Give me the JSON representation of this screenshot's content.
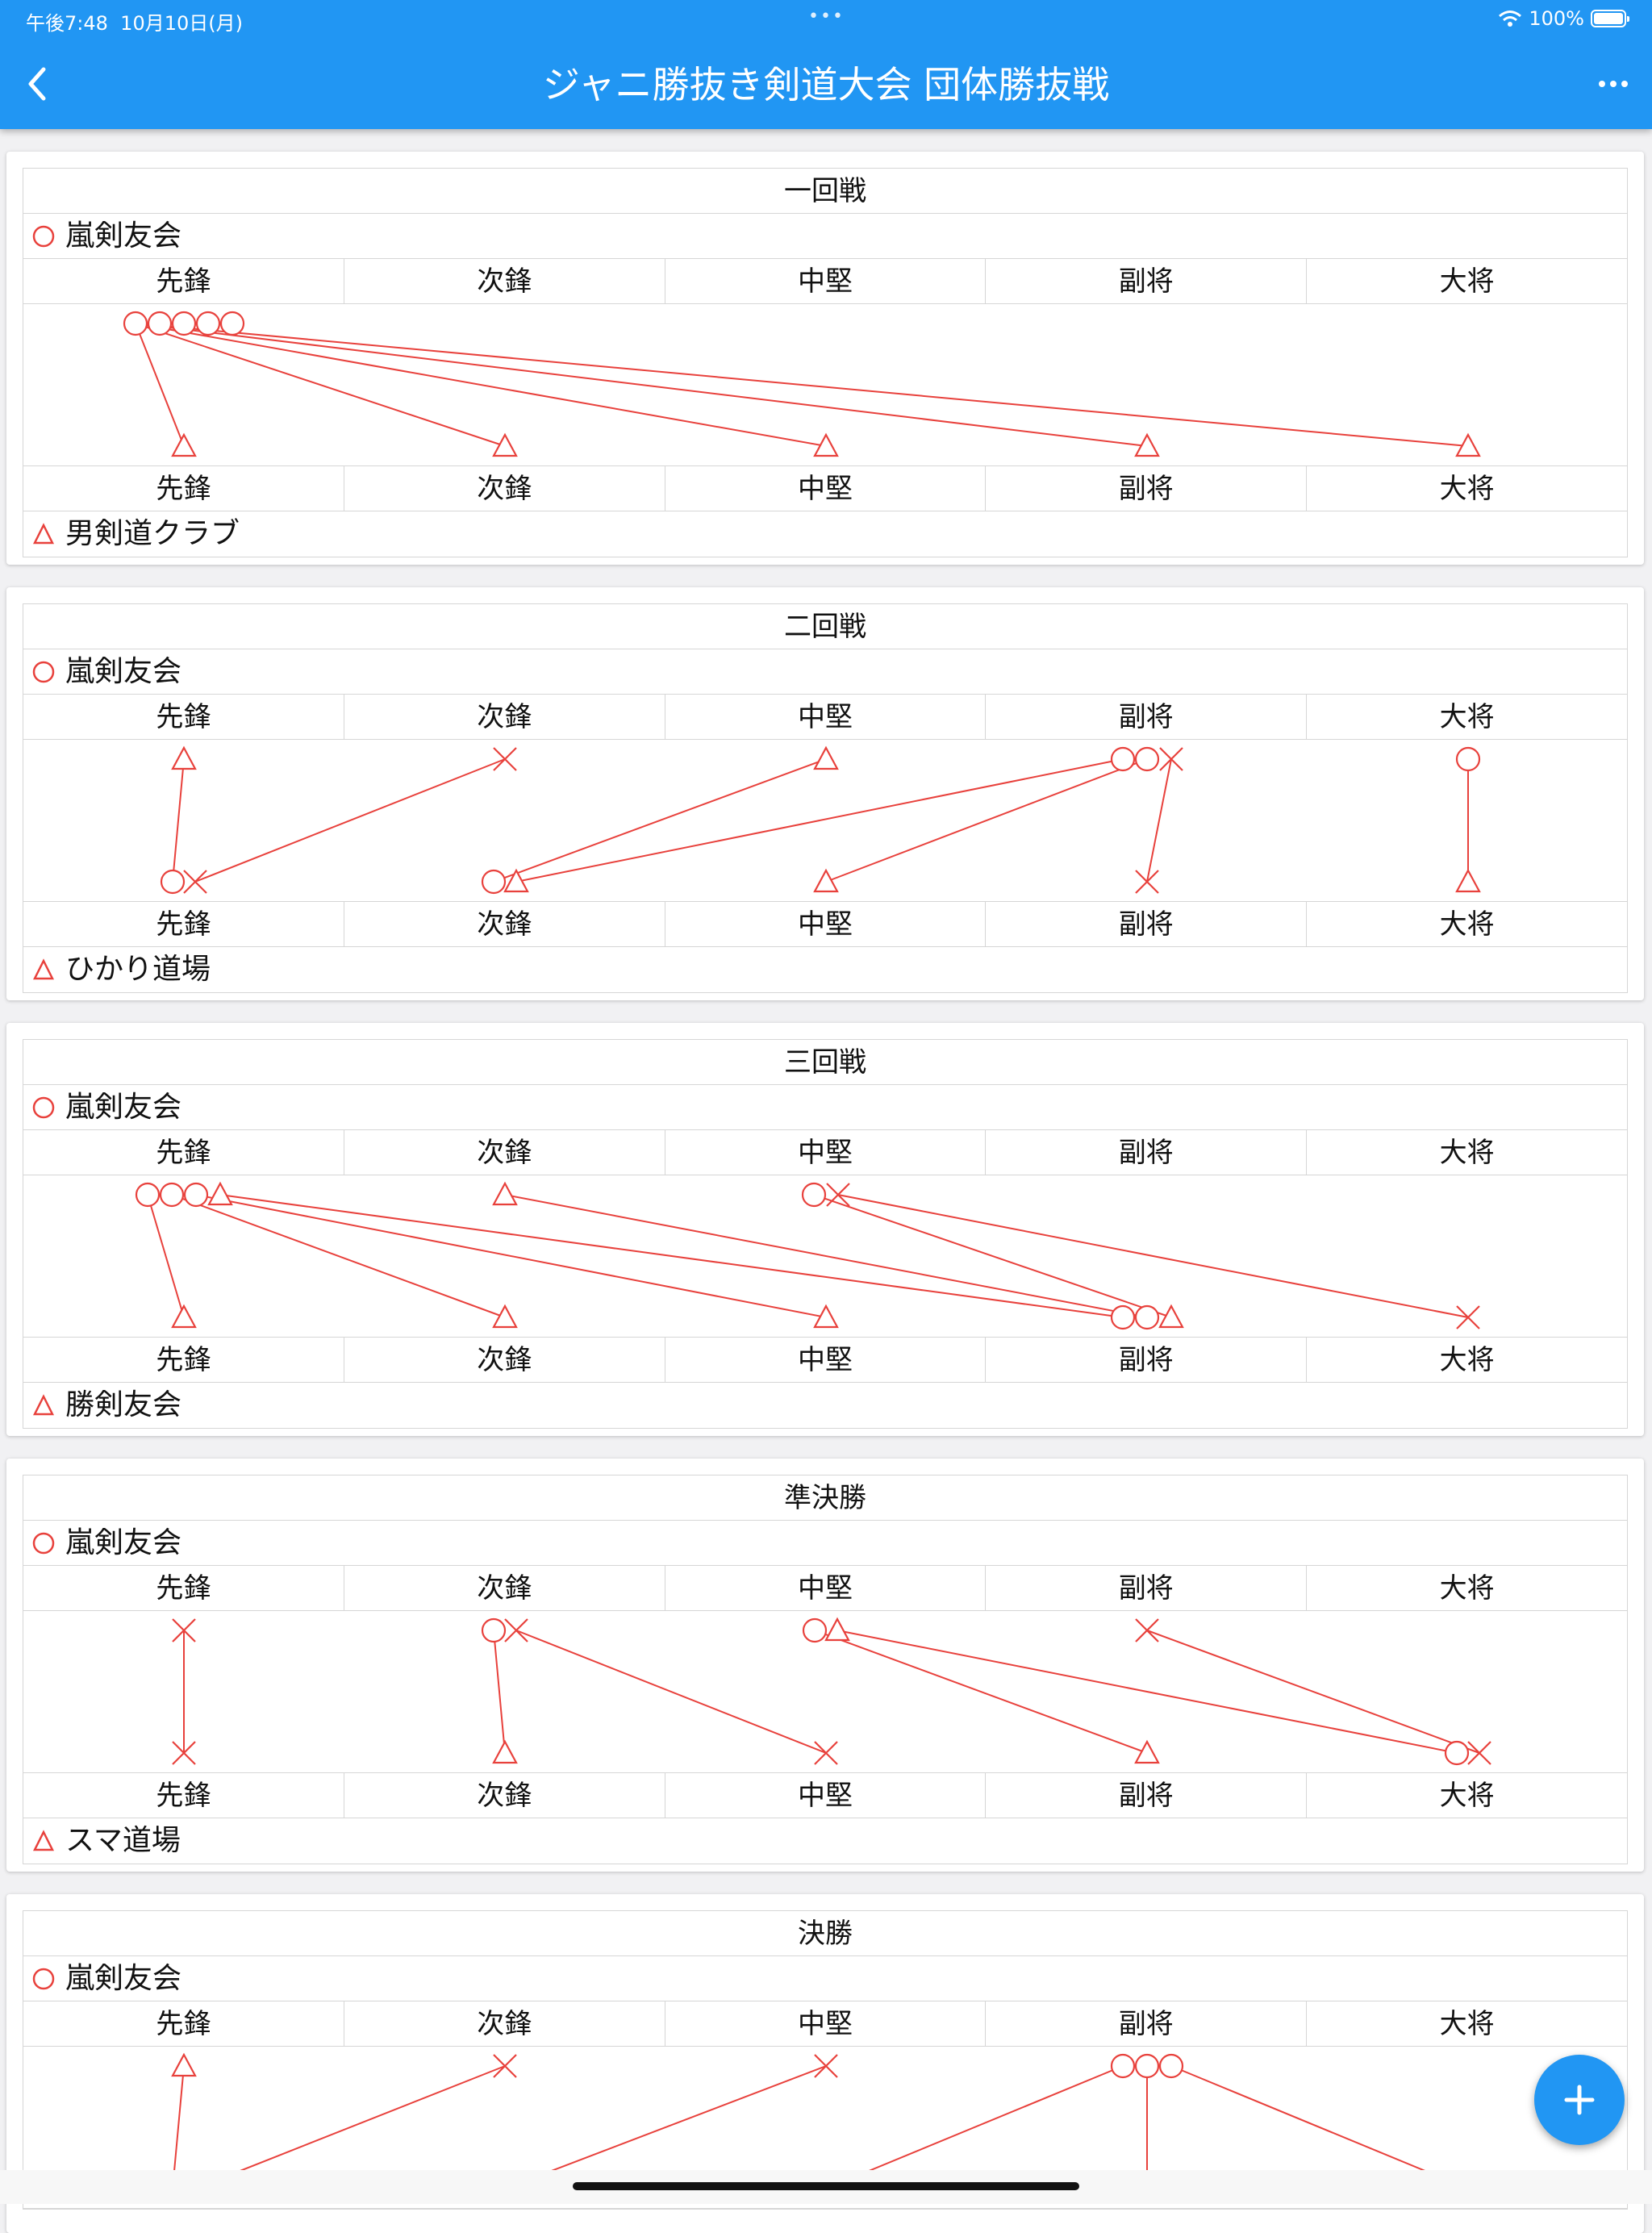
{
  "status_bar": {
    "time": "午後7:48",
    "date": "10月10日(月)",
    "battery": "100%"
  },
  "header": {
    "title": "ジャニ勝抜き剣道大会 団体勝抜戦"
  },
  "positions": [
    "先鋒",
    "次鋒",
    "中堅",
    "副将",
    "大将"
  ],
  "colors": {
    "accent": "#2196f3",
    "mark": "#e8413c"
  },
  "rounds": [
    {
      "title": "一回戦",
      "team_top": "嵐剣友会",
      "team_bottom": "男剣道クラブ"
    },
    {
      "title": "二回戦",
      "team_top": "嵐剣友会",
      "team_bottom": "ひかり道場"
    },
    {
      "title": "三回戦",
      "team_top": "嵐剣友会",
      "team_bottom": "勝剣友会"
    },
    {
      "title": "準決勝",
      "team_top": "嵐剣友会",
      "team_bottom": "スマ道場"
    },
    {
      "title": "決勝",
      "team_top": "嵐剣友会",
      "team_bottom": ""
    }
  ]
}
